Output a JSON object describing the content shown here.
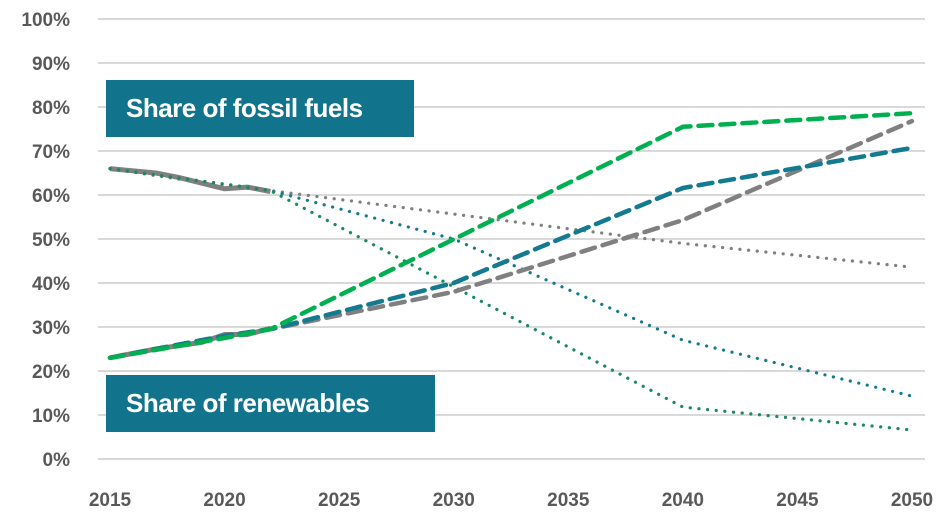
{
  "chart_data": {
    "type": "line",
    "title": "",
    "xlabel": "",
    "ylabel": "",
    "xlim": [
      2015,
      2050
    ],
    "ylim": [
      0,
      100
    ],
    "x_ticks": [
      "2015",
      "2020",
      "2025",
      "2030",
      "2035",
      "2040",
      "2045",
      "2050"
    ],
    "y_ticks": [
      "0%",
      "10%",
      "20%",
      "30%",
      "40%",
      "50%",
      "60%",
      "70%",
      "80%",
      "90%",
      "100%"
    ],
    "grid": "horizontal",
    "annotations": [
      "Share of fossil fuels",
      "Share of renewables"
    ],
    "colors": {
      "green": "#00b050",
      "teal": "#137a8f",
      "gray": "#808080",
      "dark_green": "#1a8a5e",
      "label_box": "#11748c"
    },
    "series": [
      {
        "group": "fossil",
        "style": "solid",
        "color": "#808080",
        "points": [
          [
            2015,
            66
          ],
          [
            2017,
            65
          ],
          [
            2018,
            64
          ],
          [
            2020,
            61.4
          ],
          [
            2021,
            61.8
          ],
          [
            2022,
            60.8
          ]
        ]
      },
      {
        "group": "renewables",
        "style": "solid",
        "color": "#808080",
        "points": [
          [
            2015,
            23
          ],
          [
            2017,
            25
          ],
          [
            2019,
            26.5
          ],
          [
            2020,
            28.3
          ],
          [
            2021,
            28.3
          ],
          [
            2022,
            29.7
          ]
        ]
      },
      {
        "group": "fossil",
        "style": "dotted",
        "color": "#808080",
        "points": [
          [
            2015,
            66
          ],
          [
            2020,
            62
          ],
          [
            2022,
            61
          ],
          [
            2040,
            49
          ],
          [
            2050,
            43.6
          ]
        ]
      },
      {
        "group": "fossil",
        "style": "dotted",
        "color": "#137a8f",
        "points": [
          [
            2015,
            66
          ],
          [
            2022,
            61
          ],
          [
            2030,
            50
          ],
          [
            2040,
            27
          ],
          [
            2050,
            14.3
          ]
        ]
      },
      {
        "group": "fossil",
        "style": "dotted",
        "color": "#1a8a5e",
        "points": [
          [
            2015,
            66
          ],
          [
            2017,
            64.5
          ],
          [
            2020,
            62.5
          ],
          [
            2022,
            61
          ],
          [
            2040,
            11.8
          ],
          [
            2050,
            6.6
          ]
        ]
      },
      {
        "group": "renewables",
        "style": "dashed",
        "color": "#808080",
        "points": [
          [
            2015,
            23
          ],
          [
            2020,
            28
          ],
          [
            2022,
            29.5
          ],
          [
            2030,
            38
          ],
          [
            2040,
            54.3
          ],
          [
            2050,
            76.8
          ]
        ]
      },
      {
        "group": "renewables",
        "style": "dashed",
        "color": "#137a8f",
        "points": [
          [
            2015,
            23
          ],
          [
            2020,
            28
          ],
          [
            2022,
            29.5
          ],
          [
            2030,
            40
          ],
          [
            2040,
            61.6
          ],
          [
            2050,
            70.7
          ]
        ]
      },
      {
        "group": "renewables",
        "style": "dashed",
        "color": "#00b050",
        "points": [
          [
            2015,
            23
          ],
          [
            2020,
            27.5
          ],
          [
            2022,
            29.5
          ],
          [
            2040,
            75.5
          ],
          [
            2050,
            78.6
          ]
        ]
      }
    ]
  }
}
